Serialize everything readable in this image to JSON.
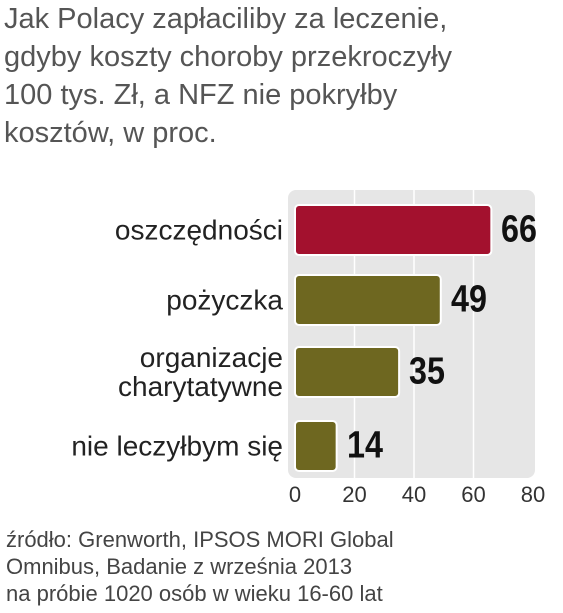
{
  "chart_data": {
    "type": "bar",
    "orientation": "horizontal",
    "title": [
      "Jak Polacy zapłaciliby za leczenie,",
      "gdyby koszty choroby przekroczyły",
      "100 tys. Zł, a NFZ nie pokryłby",
      "kosztów, w proc."
    ],
    "categories": [
      "oszczędności",
      "pożyczka",
      "organizacje\ncharytatywne",
      "nie leczyłbym się"
    ],
    "values": [
      66,
      49,
      35,
      14
    ],
    "colors": [
      "#a3112e",
      "#6e6720",
      "#6e6720",
      "#6e6720"
    ],
    "xlim": [
      0,
      80
    ],
    "xticks": [
      0,
      20,
      40,
      60,
      80
    ],
    "grid": true,
    "source": [
      "źródło: Grenworth, IPSOS MORI Global",
      "Omnibus, Badanie z września 2013",
      "na próbie 1020 osób w wieku 16-60 lat"
    ]
  }
}
